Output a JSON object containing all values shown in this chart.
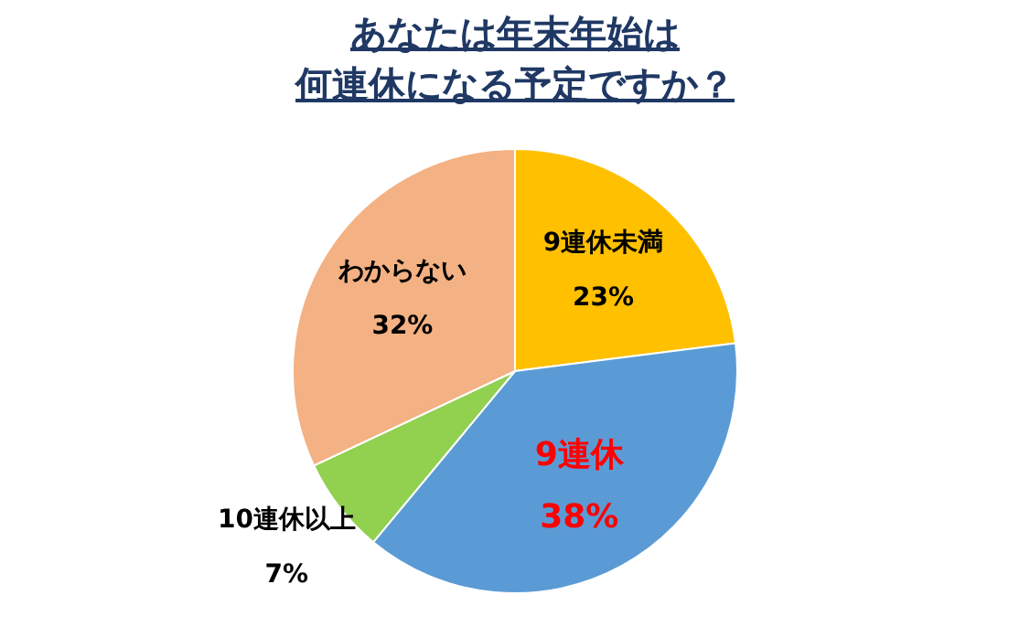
{
  "chart_data": {
    "type": "pie",
    "title": "あなたは年末年始は",
    "subtitle": "何連休になる予定ですか？",
    "categories": [
      "9連休未満",
      "9連休",
      "10連休以上",
      "わからない"
    ],
    "values": [
      23,
      38,
      7,
      32
    ],
    "colors": [
      "#ffc000",
      "#5b9bd5",
      "#92d050",
      "#f4b183"
    ],
    "value_labels": [
      "23%",
      "38%",
      "7%",
      "32%"
    ],
    "legend": false
  }
}
